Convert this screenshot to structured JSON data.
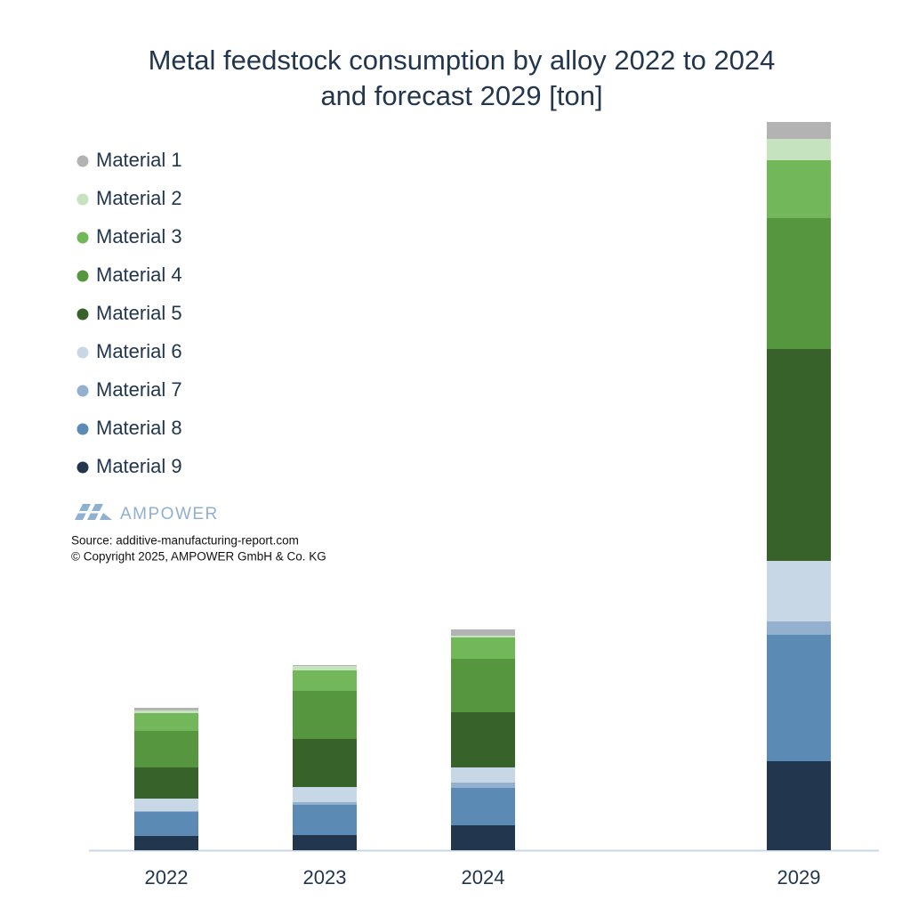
{
  "chart_data": {
    "type": "stacked-bar",
    "title": [
      "Metal feedstock consumption by alloy 2022 to 2024",
      "and forecast 2029 [ton]"
    ],
    "categories": [
      "2022",
      "2023",
      "2024",
      "2029"
    ],
    "series": [
      {
        "name": "Material 1",
        "color": "#b3b3b3",
        "values": [
          3,
          1,
          7,
          19
        ]
      },
      {
        "name": "Material 2",
        "color": "#c5e3bf",
        "values": [
          3,
          5,
          2,
          24
        ]
      },
      {
        "name": "Material 3",
        "color": "#72b85a",
        "values": [
          20,
          23,
          24,
          65
        ]
      },
      {
        "name": "Material 4",
        "color": "#55963e",
        "values": [
          41,
          54,
          60,
          147
        ]
      },
      {
        "name": "Material 5",
        "color": "#376229",
        "values": [
          35,
          54,
          62,
          238
        ]
      },
      {
        "name": "Material 6",
        "color": "#c8d7e6",
        "values": [
          14,
          17,
          17,
          68
        ]
      },
      {
        "name": "Material 7",
        "color": "#93b0cf",
        "values": [
          1,
          3,
          6,
          15
        ]
      },
      {
        "name": "Material 8",
        "color": "#5b8ab5",
        "values": [
          27,
          34,
          42,
          142
        ]
      },
      {
        "name": "Material 9",
        "color": "#22364d",
        "values": [
          16,
          17,
          28,
          100
        ]
      }
    ],
    "logo": "AMPOWER",
    "source": "Source: additive-manufacturing-report.com",
    "copyright": "© Copyright 2025, AMPOWER GmbH & Co. KG"
  }
}
